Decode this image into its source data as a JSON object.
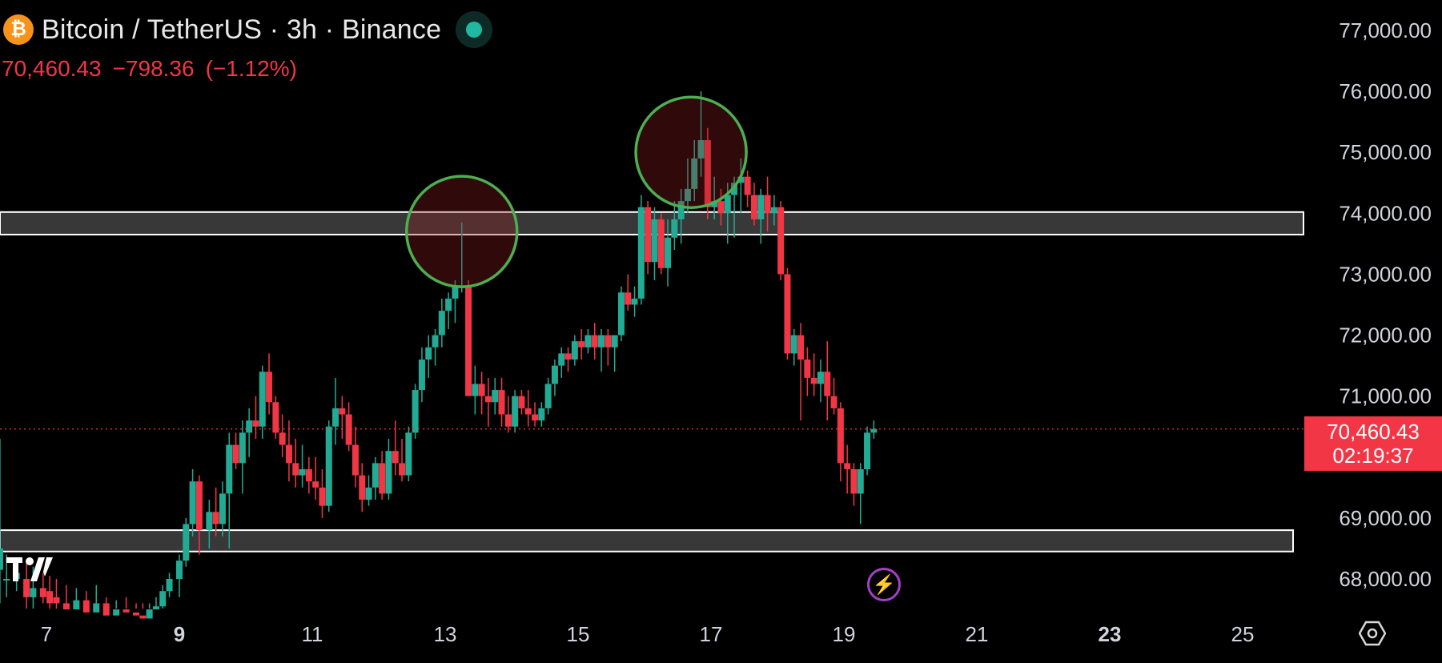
{
  "header": {
    "coin_symbol": "₿",
    "title": "Bitcoin / TetherUS · 3h · Binance",
    "last_price": "70,460.43",
    "change": "−798.36",
    "change_pct": "(−1.12%)"
  },
  "price_tag": {
    "price": "70,460.43",
    "countdown": "02:19:37"
  },
  "chart_data": {
    "type": "candlestick",
    "title": "Bitcoin / TetherUS · 3h · Binance",
    "y_tick_labels": [
      "77,000.00",
      "76,000.00",
      "75,000.00",
      "74,000.00",
      "73,000.00",
      "72,000.00",
      "71,000.00",
      "69,000.00",
      "68,000.00"
    ],
    "y_tick_values": [
      77000,
      76000,
      75000,
      74000,
      73000,
      72000,
      71000,
      69000,
      68000
    ],
    "x_tick_labels": [
      "7",
      "9",
      "11",
      "13",
      "15",
      "17",
      "19",
      "21",
      "23",
      "25"
    ],
    "x_tick_bold": [
      "9",
      "23"
    ],
    "ylim": [
      67500,
      77500
    ],
    "xlim": [
      6.3,
      26.2
    ],
    "current_price": 70460.43,
    "zones": [
      {
        "type": "horizontal-band",
        "y_low": 73650,
        "y_high": 74020
      },
      {
        "type": "horizontal-band",
        "y_low": 68450,
        "y_high": 68800
      }
    ],
    "circles": [
      {
        "x": 13.25,
        "y": 73700,
        "label": ""
      },
      {
        "x": 16.7,
        "y": 75000,
        "label": ""
      }
    ],
    "candles_ohlc": [
      [
        6.15,
        68100,
        68300,
        67600,
        67800
      ],
      [
        6.3,
        68150,
        70300,
        67600,
        68500
      ],
      [
        6.4,
        68000,
        68400,
        67700,
        68000
      ],
      [
        6.55,
        68000,
        68200,
        67800,
        68100
      ],
      [
        6.7,
        68000,
        68300,
        67500,
        67700
      ],
      [
        6.8,
        67700,
        68200,
        67500,
        67850
      ],
      [
        6.95,
        67850,
        68100,
        67600,
        67700
      ],
      [
        7.05,
        67800,
        68050,
        67500,
        67600
      ],
      [
        7.15,
        67700,
        68000,
        67500,
        67600
      ],
      [
        7.3,
        67600,
        67900,
        67400,
        67500
      ],
      [
        7.45,
        67500,
        67850,
        67400,
        67650
      ],
      [
        7.6,
        67650,
        67800,
        67300,
        67450
      ],
      [
        7.75,
        67450,
        67900,
        67350,
        67600
      ],
      [
        7.9,
        67600,
        67700,
        67300,
        67400
      ],
      [
        8.05,
        67400,
        67650,
        67300,
        67500
      ],
      [
        8.2,
        67500,
        67700,
        67400,
        67450
      ],
      [
        8.35,
        67450,
        67600,
        67300,
        67400
      ],
      [
        8.45,
        67400,
        67600,
        67250,
        67350
      ],
      [
        8.55,
        67350,
        67600,
        67300,
        67500
      ],
      [
        8.65,
        67500,
        67700,
        67400,
        67550
      ],
      [
        8.75,
        67550,
        67900,
        67500,
        67800
      ],
      [
        8.85,
        67800,
        68100,
        67700,
        68000
      ],
      [
        9.0,
        68000,
        68400,
        67700,
        68300
      ],
      [
        9.1,
        68300,
        69000,
        68200,
        68900
      ],
      [
        9.2,
        68900,
        69800,
        68700,
        69600
      ],
      [
        9.3,
        69600,
        69700,
        68400,
        68800
      ],
      [
        9.45,
        68800,
        69300,
        68500,
        69100
      ],
      [
        9.55,
        69100,
        69500,
        68700,
        68900
      ],
      [
        9.65,
        68900,
        69600,
        68700,
        69400
      ],
      [
        9.75,
        69400,
        70400,
        68500,
        70200
      ],
      [
        9.85,
        70200,
        70400,
        69800,
        69900
      ],
      [
        9.95,
        69900,
        70600,
        69400,
        70400
      ],
      [
        10.05,
        70400,
        70800,
        70000,
        70600
      ],
      [
        10.15,
        70600,
        71000,
        70300,
        70500
      ],
      [
        10.25,
        70500,
        71500,
        70300,
        71400
      ],
      [
        10.35,
        71400,
        71700,
        70700,
        70900
      ],
      [
        10.45,
        70900,
        71000,
        70300,
        70400
      ],
      [
        10.55,
        70400,
        70700,
        70000,
        70200
      ],
      [
        10.65,
        70200,
        70600,
        69600,
        69900
      ],
      [
        10.75,
        69900,
        70300,
        69500,
        69700
      ],
      [
        10.85,
        69700,
        70200,
        69500,
        69800
      ],
      [
        10.95,
        69800,
        70000,
        69400,
        69600
      ],
      [
        11.05,
        69600,
        70000,
        69300,
        69500
      ],
      [
        11.15,
        69500,
        69800,
        69000,
        69200
      ],
      [
        11.25,
        69200,
        70600,
        69100,
        70500
      ],
      [
        11.35,
        70500,
        71300,
        70200,
        70800
      ],
      [
        11.45,
        70800,
        71000,
        70300,
        70700
      ],
      [
        11.55,
        70700,
        70900,
        70100,
        70200
      ],
      [
        11.65,
        70200,
        70500,
        69500,
        69700
      ],
      [
        11.75,
        69700,
        69900,
        69100,
        69300
      ],
      [
        11.85,
        69300,
        69700,
        69200,
        69500
      ],
      [
        11.95,
        69500,
        70000,
        69300,
        69900
      ],
      [
        12.05,
        69900,
        70100,
        69300,
        69400
      ],
      [
        12.15,
        69400,
        70300,
        69300,
        70100
      ],
      [
        12.25,
        70100,
        70600,
        69700,
        69900
      ],
      [
        12.35,
        69900,
        70300,
        69600,
        69700
      ],
      [
        12.45,
        69700,
        70500,
        69600,
        70400
      ],
      [
        12.55,
        70400,
        71200,
        70300,
        71100
      ],
      [
        12.65,
        71100,
        71800,
        70900,
        71600
      ],
      [
        12.75,
        71600,
        72000,
        71300,
        71800
      ],
      [
        12.85,
        71800,
        72100,
        71500,
        72000
      ],
      [
        12.95,
        72000,
        72600,
        71800,
        72400
      ],
      [
        13.05,
        72400,
        72700,
        72100,
        72600
      ],
      [
        13.15,
        72600,
        72900,
        72200,
        72800
      ],
      [
        13.25,
        72800,
        73850,
        72700,
        72800
      ],
      [
        13.35,
        72800,
        72900,
        71000,
        71000
      ],
      [
        13.45,
        71000,
        71500,
        70700,
        71200
      ],
      [
        13.55,
        71200,
        71400,
        70700,
        71000
      ],
      [
        13.65,
        71000,
        71300,
        70500,
        70900
      ],
      [
        13.75,
        70900,
        71300,
        70700,
        71100
      ],
      [
        13.85,
        71100,
        71300,
        70500,
        70700
      ],
      [
        13.95,
        70700,
        71000,
        70400,
        70500
      ],
      [
        14.05,
        70500,
        71100,
        70400,
        71000
      ],
      [
        14.15,
        71000,
        71100,
        70700,
        70800
      ],
      [
        14.25,
        70800,
        71100,
        70500,
        70700
      ],
      [
        14.35,
        70700,
        70900,
        70500,
        70600
      ],
      [
        14.45,
        70600,
        70900,
        70500,
        70800
      ],
      [
        14.55,
        70800,
        71300,
        70700,
        71200
      ],
      [
        14.65,
        71200,
        71600,
        71000,
        71500
      ],
      [
        14.75,
        71500,
        71800,
        71300,
        71700
      ],
      [
        14.85,
        71700,
        71800,
        71400,
        71600
      ],
      [
        14.95,
        71600,
        72000,
        71500,
        71900
      ],
      [
        15.05,
        71900,
        72100,
        71600,
        71800
      ],
      [
        15.15,
        71800,
        72100,
        71700,
        72000
      ],
      [
        15.25,
        72000,
        72200,
        71600,
        71800
      ],
      [
        15.35,
        71800,
        72100,
        71400,
        72000
      ],
      [
        15.45,
        72000,
        72100,
        71500,
        71800
      ],
      [
        15.55,
        71800,
        72000,
        71400,
        72000
      ],
      [
        15.65,
        72000,
        72800,
        71900,
        72700
      ],
      [
        15.75,
        72700,
        73000,
        72400,
        72500
      ],
      [
        15.85,
        72500,
        72800,
        72300,
        72600
      ],
      [
        15.95,
        72600,
        74300,
        72500,
        74100
      ],
      [
        16.05,
        74100,
        74200,
        73000,
        73200
      ],
      [
        16.15,
        73200,
        74100,
        72900,
        73900
      ],
      [
        16.25,
        73900,
        74000,
        73000,
        73100
      ],
      [
        16.35,
        73100,
        73900,
        72800,
        73600
      ],
      [
        16.45,
        73600,
        74200,
        73400,
        73900
      ],
      [
        16.55,
        73900,
        74400,
        73500,
        74200
      ],
      [
        16.65,
        74200,
        74900,
        74000,
        74400
      ],
      [
        16.75,
        74400,
        75200,
        74200,
        74900
      ],
      [
        16.85,
        74900,
        76000,
        74600,
        75200
      ],
      [
        16.95,
        75200,
        75400,
        73900,
        74100
      ],
      [
        17.05,
        74100,
        74600,
        73900,
        74200
      ],
      [
        17.15,
        74200,
        74400,
        73800,
        74000
      ],
      [
        17.25,
        74000,
        74500,
        73500,
        74300
      ],
      [
        17.35,
        74300,
        74600,
        73600,
        74500
      ],
      [
        17.45,
        74500,
        74900,
        74000,
        74600
      ],
      [
        17.55,
        74600,
        74700,
        74100,
        74300
      ],
      [
        17.65,
        74300,
        74500,
        73800,
        73900
      ],
      [
        17.75,
        73900,
        74400,
        73500,
        74300
      ],
      [
        17.85,
        74300,
        74600,
        73700,
        74000
      ],
      [
        17.95,
        74000,
        74300,
        73800,
        74100
      ],
      [
        18.05,
        74100,
        74200,
        72900,
        73000
      ],
      [
        18.15,
        73000,
        73100,
        71600,
        71700
      ],
      [
        18.25,
        71700,
        72100,
        71500,
        72000
      ],
      [
        18.35,
        72000,
        72200,
        70600,
        71600
      ],
      [
        18.45,
        71600,
        71800,
        71000,
        71300
      ],
      [
        18.55,
        71300,
        71700,
        71000,
        71200
      ],
      [
        18.65,
        71200,
        71600,
        70900,
        71400
      ],
      [
        18.75,
        71400,
        71900,
        70600,
        71000
      ],
      [
        18.85,
        71000,
        71300,
        70700,
        70800
      ],
      [
        18.95,
        70800,
        70900,
        69600,
        69900
      ],
      [
        19.05,
        69900,
        70200,
        69400,
        69800
      ],
      [
        19.15,
        69800,
        69900,
        69200,
        69400
      ],
      [
        19.25,
        69400,
        69900,
        68900,
        69800
      ],
      [
        19.35,
        69800,
        70500,
        69700,
        70400
      ],
      [
        19.45,
        70400,
        70600,
        70300,
        70460
      ]
    ]
  }
}
